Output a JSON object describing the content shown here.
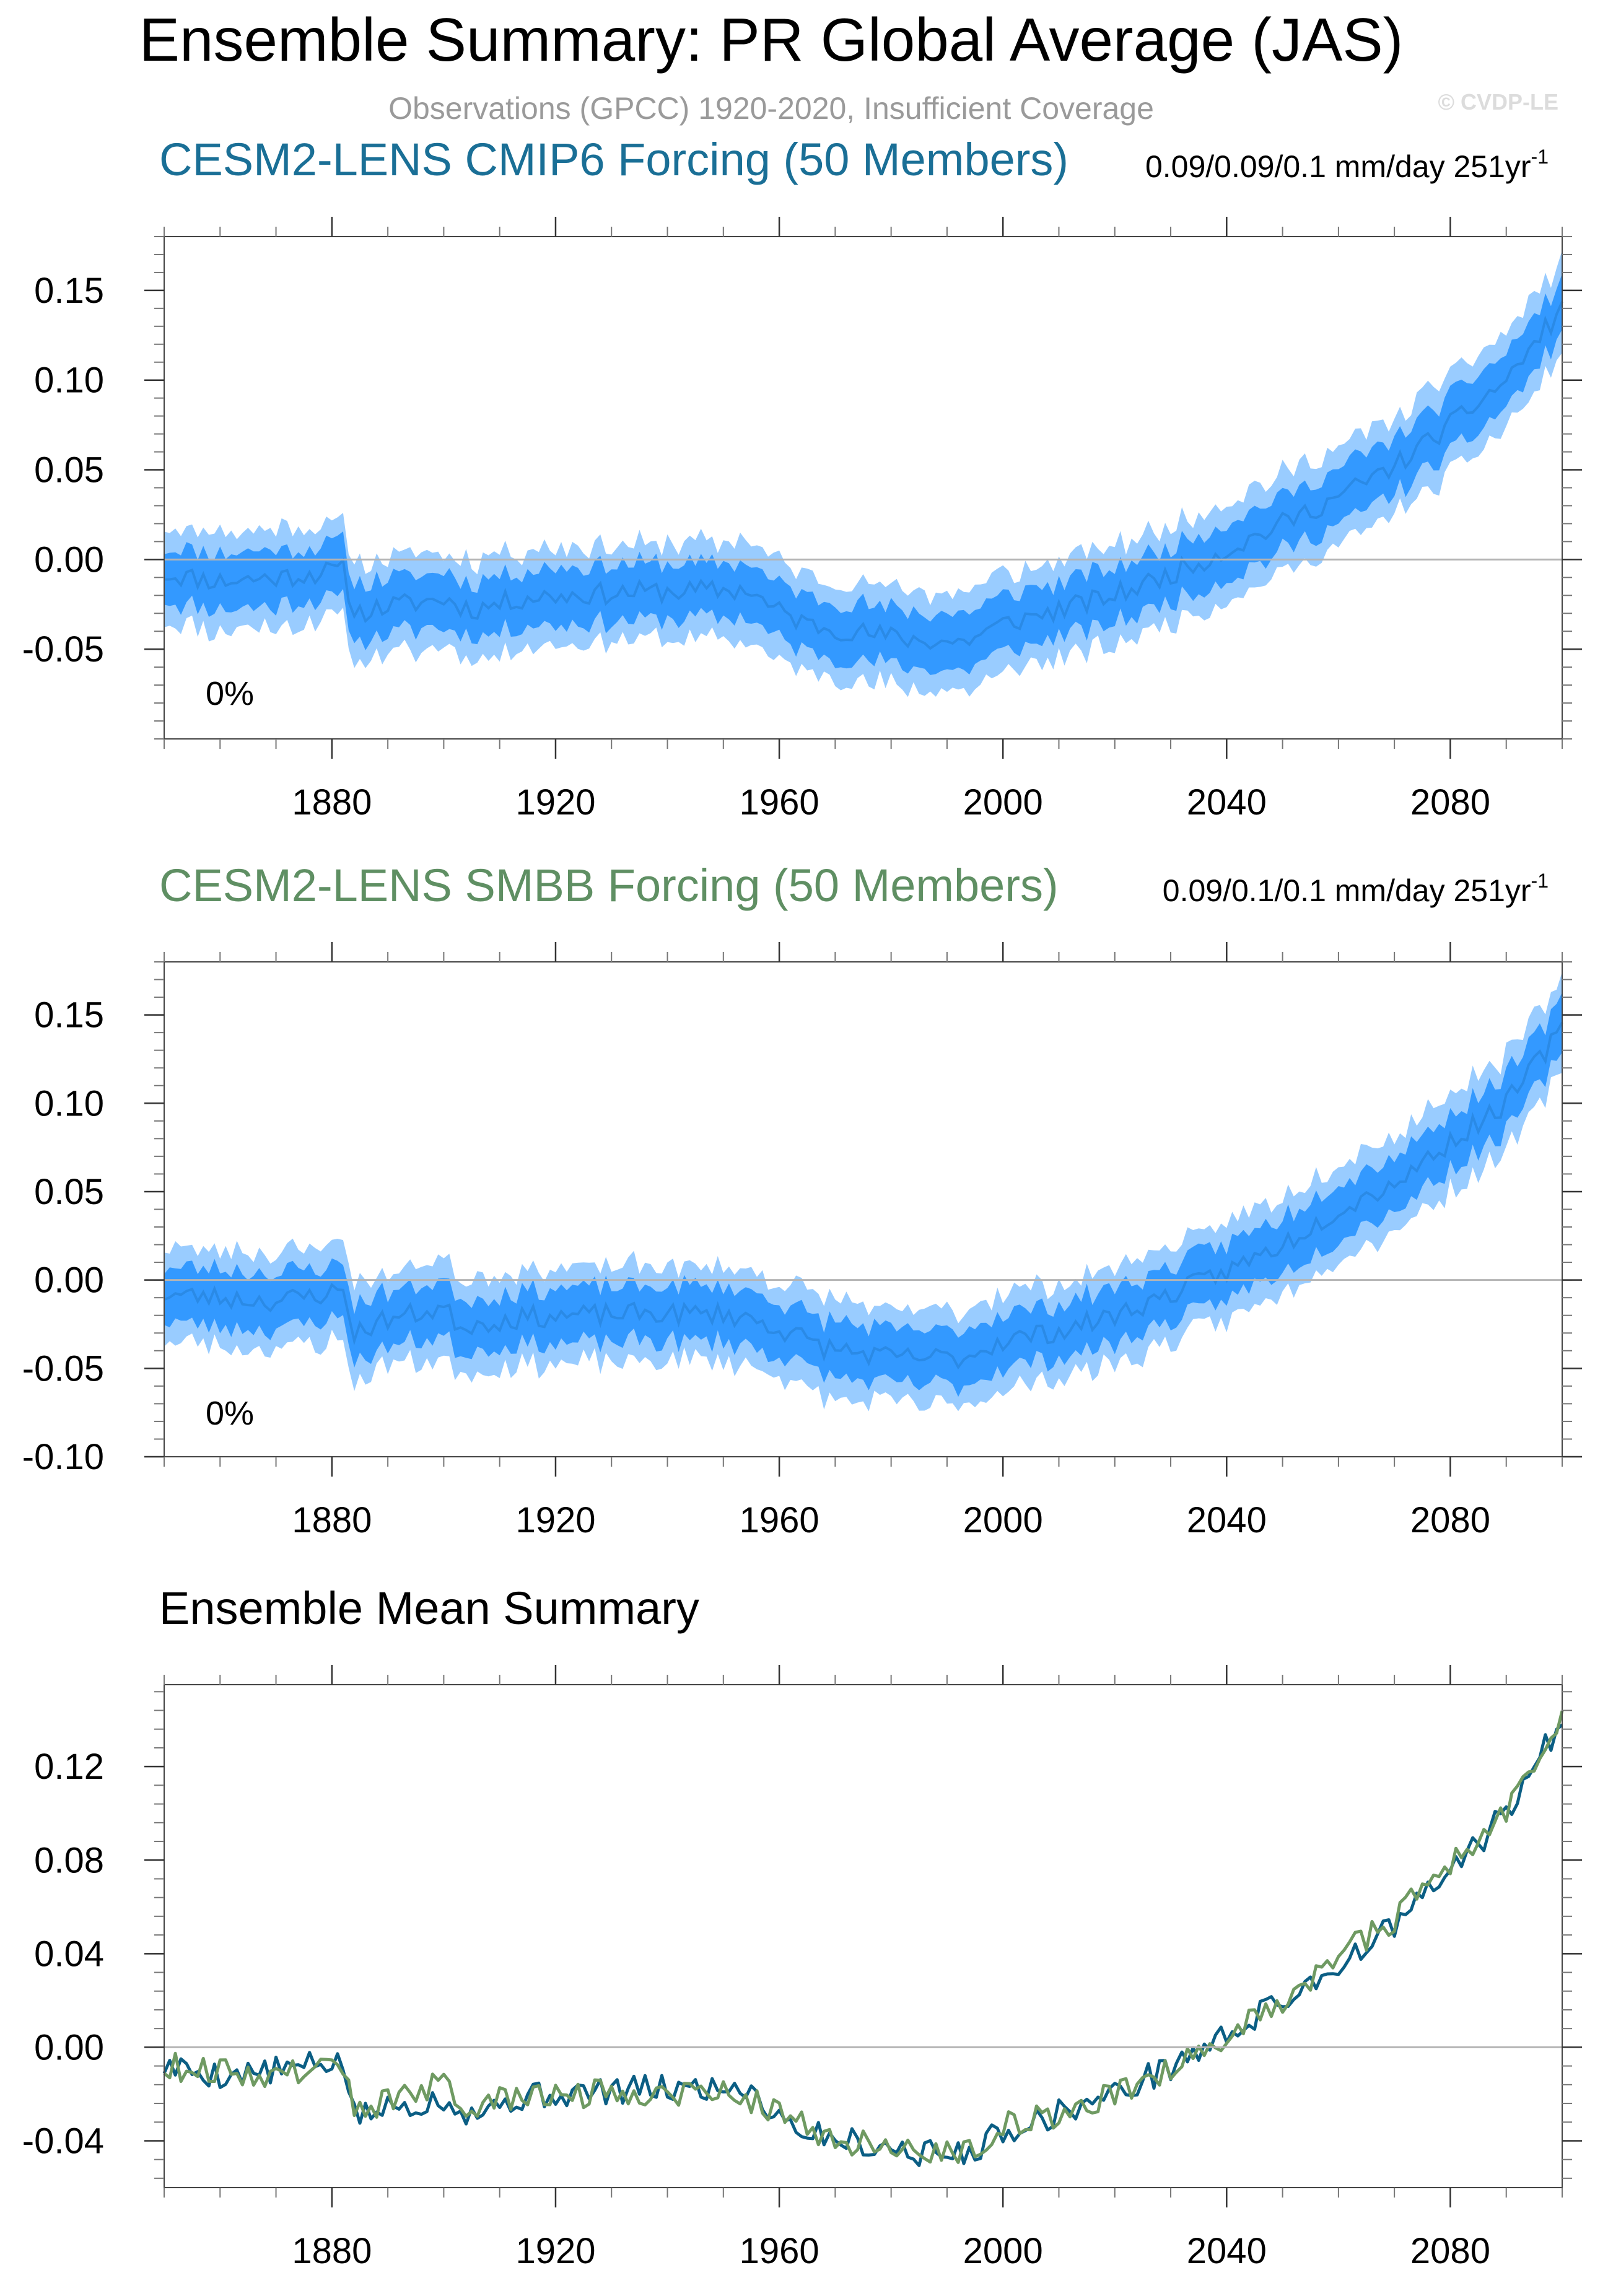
{
  "page": {
    "title": "Ensemble Summary: PR Global Average (JAS)",
    "subtitle": "Observations (GPCC) 1920-2020, Insufficient Coverage",
    "watermark": "© CVDP-LE"
  },
  "colors": {
    "cmip6_title": "#1a6f96",
    "smbb_title": "#5f8f63",
    "band_outer": "#99ccff",
    "band_inner": "#3399ff",
    "mean_line": "#2a8ae6",
    "cmip6_line": "#0b5e84",
    "smbb_line": "#6f9a62",
    "axis": "#333333",
    "zero_line": "#b4b4b4"
  },
  "chart_data": [
    {
      "id": "cmip6",
      "type": "area",
      "title": "CESM2-LENS CMIP6 Forcing (50 Members)",
      "trend_label": "0.09/0.09/0.1 mm/day 251yr",
      "trend_exponent": "-1",
      "percent_label": "0%",
      "x_range": [
        1850,
        2100
      ],
      "ylim": [
        -0.1,
        0.18
      ],
      "y_ticks": [
        "0.15",
        "0.10",
        "0.05",
        "0.00",
        "-0.05"
      ],
      "x_ticks": [
        "1880",
        "1920",
        "1960",
        "2000",
        "2040",
        "2080"
      ],
      "mean_anchors": [
        [
          1850,
          -0.008
        ],
        [
          1860,
          -0.012
        ],
        [
          1870,
          -0.01
        ],
        [
          1882,
          -0.006
        ],
        [
          1884,
          -0.03
        ],
        [
          1890,
          -0.026
        ],
        [
          1900,
          -0.022
        ],
        [
          1905,
          -0.028
        ],
        [
          1915,
          -0.021
        ],
        [
          1935,
          -0.018
        ],
        [
          1955,
          -0.017
        ],
        [
          1958,
          -0.026
        ],
        [
          1965,
          -0.036
        ],
        [
          1975,
          -0.041
        ],
        [
          1985,
          -0.045
        ],
        [
          1993,
          -0.046
        ],
        [
          2000,
          -0.036
        ],
        [
          2010,
          -0.028
        ],
        [
          2020,
          -0.02
        ],
        [
          2030,
          -0.008
        ],
        [
          2040,
          0.005
        ],
        [
          2050,
          0.02
        ],
        [
          2060,
          0.035
        ],
        [
          2070,
          0.052
        ],
        [
          2080,
          0.075
        ],
        [
          2090,
          0.1
        ],
        [
          2100,
          0.14
        ]
      ],
      "inner_halfwidth": 0.014,
      "outer_halfwidth": 0.024,
      "noise": 0.006,
      "seed": 11
    },
    {
      "id": "smbb",
      "type": "area",
      "title": "CESM2-LENS SMBB Forcing (50 Members)",
      "trend_label": "0.09/0.1/0.1 mm/day 251yr",
      "trend_exponent": "-1",
      "percent_label": "0%",
      "x_range": [
        1850,
        2100
      ],
      "ylim": [
        -0.1,
        0.18
      ],
      "y_ticks": [
        "0.15",
        "0.10",
        "0.05",
        "0.00",
        "-0.05",
        "-0.10"
      ],
      "x_ticks": [
        "1880",
        "1920",
        "1960",
        "2000",
        "2040",
        "2080"
      ],
      "mean_anchors": [
        [
          1850,
          -0.008
        ],
        [
          1860,
          -0.01
        ],
        [
          1870,
          -0.012
        ],
        [
          1882,
          -0.006
        ],
        [
          1884,
          -0.03
        ],
        [
          1890,
          -0.022
        ],
        [
          1900,
          -0.016
        ],
        [
          1903,
          -0.026
        ],
        [
          1915,
          -0.021
        ],
        [
          1935,
          -0.019
        ],
        [
          1950,
          -0.019
        ],
        [
          1955,
          -0.022
        ],
        [
          1962,
          -0.03
        ],
        [
          1968,
          -0.038
        ],
        [
          1980,
          -0.044
        ],
        [
          1993,
          -0.044
        ],
        [
          2000,
          -0.034
        ],
        [
          2010,
          -0.029
        ],
        [
          2020,
          -0.02
        ],
        [
          2030,
          -0.008
        ],
        [
          2040,
          0.005
        ],
        [
          2050,
          0.02
        ],
        [
          2060,
          0.04
        ],
        [
          2070,
          0.055
        ],
        [
          2080,
          0.078
        ],
        [
          2090,
          0.1
        ],
        [
          2100,
          0.142
        ]
      ],
      "inner_halfwidth": 0.014,
      "outer_halfwidth": 0.024,
      "noise": 0.006,
      "seed": 23
    },
    {
      "id": "mean",
      "type": "line",
      "title": "Ensemble Mean Summary",
      "x_range": [
        1850,
        2100
      ],
      "ylim": [
        -0.06,
        0.155
      ],
      "y_ticks": [
        "0.12",
        "0.08",
        "0.04",
        "0.00",
        "-0.04"
      ],
      "x_ticks": [
        "1880",
        "1920",
        "1960",
        "2000",
        "2040",
        "2080"
      ],
      "series": [
        {
          "name": "CESM2-LENS CMIP6 Forcing",
          "color": "#0b5e84",
          "source": "cmip6",
          "seed": 5
        },
        {
          "name": "CESM2-LENS SMBB Forcing",
          "color": "#6f9a62",
          "source": "smbb",
          "seed": 9
        }
      ]
    }
  ]
}
